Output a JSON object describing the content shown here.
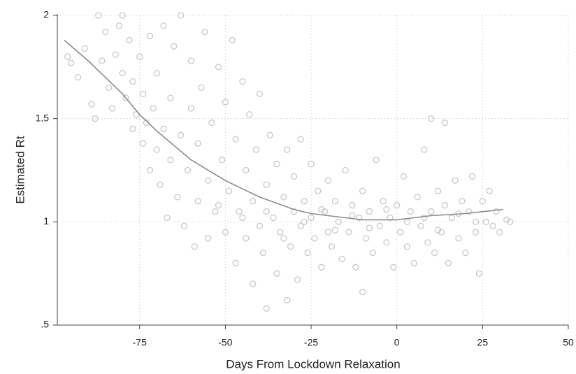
{
  "chart_data": {
    "type": "scatter",
    "x_label": "Days From Lockdown Relaxation",
    "y_label": "Estimated Rt",
    "xlim": [
      -99,
      50
    ],
    "ylim": [
      0.5,
      2
    ],
    "xticks": [
      -75,
      -50,
      -25,
      0,
      25,
      50
    ],
    "yticks": [
      {
        "value": 0.5,
        "label": ".5"
      },
      1,
      1.5,
      2
    ],
    "grid": true,
    "series": [
      {
        "kind": "points",
        "color": "#c8c8c8",
        "x": [
          -96,
          -95,
          -93,
          -91,
          -89,
          -88,
          -87,
          -86,
          -85,
          -84,
          -83,
          -82,
          -81,
          -80,
          -80,
          -79,
          -78,
          -77,
          -77,
          -76,
          -75,
          -74,
          -74,
          -73,
          -72,
          -72,
          -71,
          -70,
          -70,
          -69,
          -68,
          -68,
          -67,
          -66,
          -66,
          -65,
          -64,
          -63,
          -63,
          -62,
          -61,
          -60,
          -60,
          -59,
          -58,
          -58,
          -57,
          -56,
          -55,
          -55,
          -54,
          -53,
          -52,
          -51,
          -50,
          -50,
          -49,
          -48,
          -47,
          -47,
          -46,
          -45,
          -44,
          -44,
          -43,
          -42,
          -42,
          -41,
          -40,
          -40,
          -39,
          -38,
          -38,
          -37,
          -36,
          -35,
          -35,
          -34,
          -33,
          -32,
          -32,
          -31,
          -30,
          -30,
          -29,
          -28,
          -28,
          -27,
          -26,
          -25,
          -25,
          -24,
          -23,
          -22,
          -21,
          -20,
          -20,
          -19,
          -18,
          -17,
          -16,
          -15,
          -14,
          -13,
          -12,
          -11,
          -10,
          -10,
          -9,
          -8,
          -7,
          -6,
          -5,
          -4,
          -3,
          -2,
          -1,
          0,
          1,
          2,
          3,
          4,
          5,
          6,
          7,
          8,
          9,
          10,
          10,
          11,
          12,
          13,
          14,
          14,
          15,
          16,
          17,
          18,
          19,
          20,
          21,
          22,
          23,
          24,
          25,
          26,
          27,
          28,
          29,
          30,
          32,
          33,
          -52,
          -45,
          -38,
          -33,
          -27,
          -22,
          -18,
          -13,
          -8,
          -3,
          3,
          8,
          12,
          18,
          23
        ],
        "values": [
          1.8,
          1.77,
          1.7,
          1.84,
          1.57,
          1.5,
          2,
          1.78,
          1.92,
          1.65,
          1.55,
          1.81,
          1.95,
          2,
          1.72,
          1.6,
          1.88,
          1.45,
          1.68,
          1.52,
          1.8,
          1.38,
          1.62,
          1.48,
          1.25,
          1.9,
          1.55,
          1.35,
          1.72,
          1.18,
          1.45,
          1.95,
          1.02,
          1.3,
          1.6,
          1.85,
          1.12,
          1.42,
          2,
          0.98,
          1.25,
          1.55,
          1.78,
          0.88,
          1.1,
          1.38,
          1.65,
          1.92,
          0.92,
          1.2,
          1.48,
          1.05,
          1.75,
          1.3,
          0.95,
          1.58,
          1.15,
          1.88,
          0.8,
          1.4,
          1.05,
          1.68,
          0.92,
          1.25,
          1.52,
          0.7,
          1.1,
          1.35,
          0.98,
          1.62,
          0.85,
          0.58,
          1.18,
          1.42,
          1.02,
          0.75,
          1.28,
          0.95,
          1.12,
          0.62,
          1.35,
          0.88,
          1.05,
          1.22,
          0.72,
          0.98,
          1.4,
          1.1,
          0.85,
          1.02,
          1.28,
          0.92,
          1.15,
          0.78,
          1.05,
          0.95,
          1.2,
          0.88,
          1.1,
          1.0,
          0.82,
          1.25,
          0.95,
          1.08,
          0.78,
          1.02,
          0.66,
          1.15,
          0.92,
          1.05,
          0.85,
          1.3,
          0.98,
          1.1,
          0.9,
          1.02,
          0.78,
          1.08,
          0.95,
          1.22,
          0.88,
          1.05,
          0.8,
          1.12,
          0.98,
          1.35,
          0.9,
          1.5,
          1.05,
          0.85,
          1.15,
          0.95,
          1.48,
          1.08,
          0.8,
          1.02,
          1.2,
          0.92,
          1.1,
          0.85,
          1.05,
          1.22,
          0.95,
          0.75,
          1.1,
          1.0,
          1.15,
          0.98,
          1.05,
          0.95,
          1.01,
          1.0,
          1.08,
          1.02,
          1.05,
          0.92,
          1.0,
          1.06,
          0.96,
          1.03,
          0.97,
          1.06,
          1.0,
          1.02,
          0.96,
          1.04,
          1.0
        ]
      },
      {
        "kind": "trend",
        "color": "#8c8c8c",
        "x": [
          -97,
          -90,
          -80,
          -75,
          -70,
          -60,
          -50,
          -40,
          -30,
          -25,
          -20,
          -10,
          0,
          10,
          20,
          31
        ],
        "values": [
          1.88,
          1.78,
          1.62,
          1.52,
          1.44,
          1.3,
          1.2,
          1.12,
          1.06,
          1.04,
          1.03,
          1.01,
          1.01,
          1.03,
          1.04,
          1.06
        ]
      }
    ]
  }
}
